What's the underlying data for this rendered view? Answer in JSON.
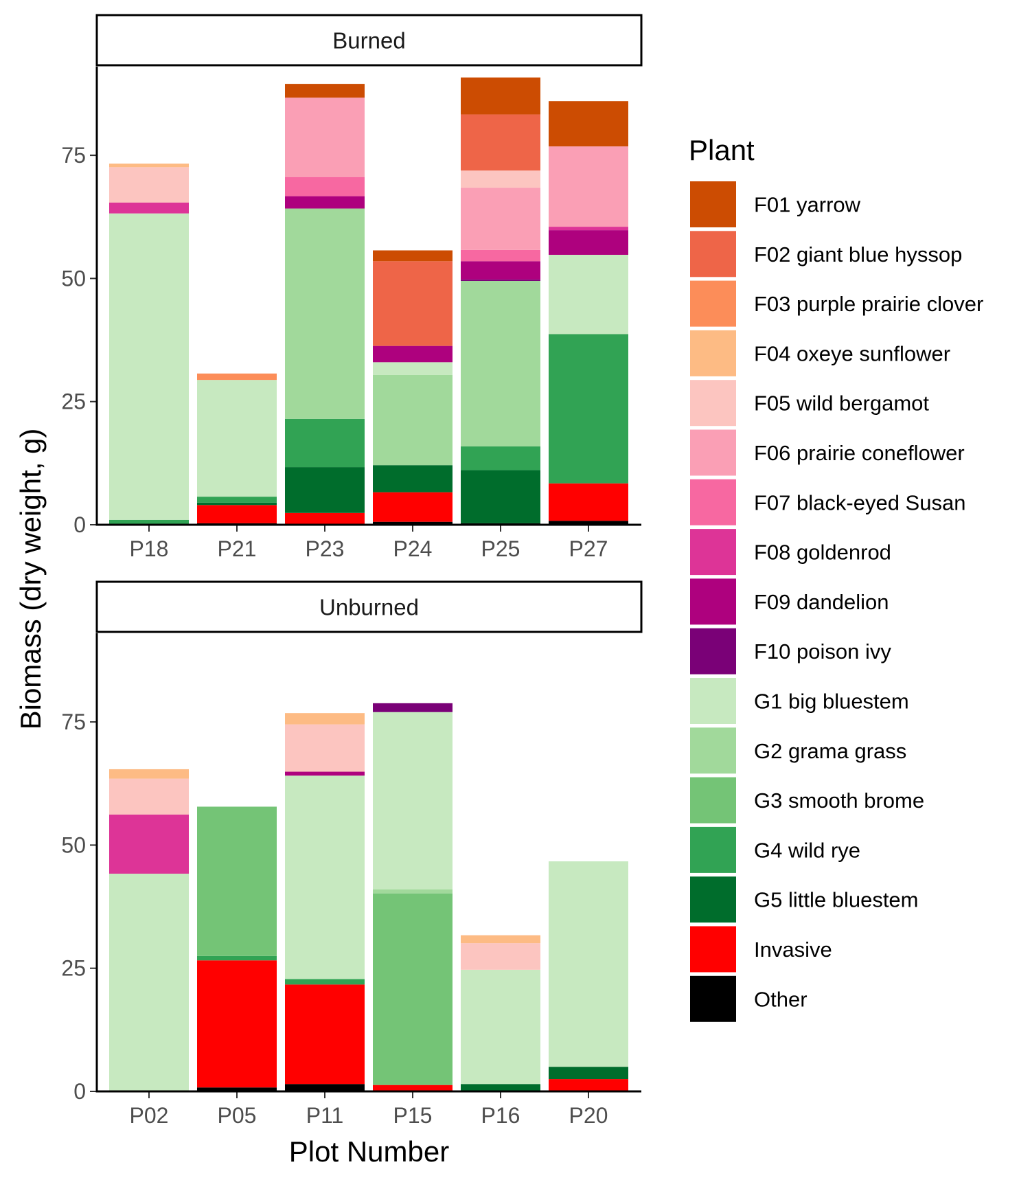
{
  "chart_data": {
    "type": "bar",
    "stacked": true,
    "xlabel": "Plot Number",
    "ylabel": "Biomass (dry weight, g)",
    "ylim": [
      0,
      93
    ],
    "yticks": [
      0,
      25,
      50,
      75
    ],
    "legend_title": "Plant",
    "legend_position": "right",
    "species": [
      {
        "name": "F01 yarrow",
        "color": "#cc4c02"
      },
      {
        "name": "F02 giant blue hyssop",
        "color": "#ee6548"
      },
      {
        "name": "F03 purple prairie clover",
        "color": "#fc8d59"
      },
      {
        "name": "F04 oxeye sunflower",
        "color": "#fdbb84"
      },
      {
        "name": "F05 wild bergamot",
        "color": "#fcc5c0"
      },
      {
        "name": "F06 prairie coneflower",
        "color": "#fa9fb5"
      },
      {
        "name": "F07 black-eyed Susan",
        "color": "#f768a1"
      },
      {
        "name": "F08 goldenrod",
        "color": "#dd3497"
      },
      {
        "name": "F09 dandelion",
        "color": "#ae017e"
      },
      {
        "name": "F10 poison ivy",
        "color": "#7a0177"
      },
      {
        "name": "G1 big bluestem",
        "color": "#c7e9c0"
      },
      {
        "name": "G2 grama grass",
        "color": "#a1d99b"
      },
      {
        "name": "G3 smooth brome",
        "color": "#74c476"
      },
      {
        "name": "G4 wild rye",
        "color": "#31a354"
      },
      {
        "name": "G5 little bluestem",
        "color": "#006d2c"
      },
      {
        "name": "Invasive",
        "color": "#ff0000"
      },
      {
        "name": "Other",
        "color": "#000000"
      }
    ],
    "panels": [
      {
        "title": "Burned",
        "categories": [
          "P18",
          "P21",
          "P23",
          "P24",
          "P25",
          "P27"
        ],
        "stacks": [
          {
            "G4 wild rye": 1.0,
            "G1 big bluestem": 62.2,
            "F08 goldenrod": 2.2,
            "F05 wild bergamot": 7.2,
            "F04 oxeye sunflower": 0.7
          },
          {
            "Other": 0.3,
            "Invasive": 3.7,
            "G5 little bluestem": 0.5,
            "G4 wild rye": 1.2,
            "G1 big bluestem": 23.7,
            "F03 purple prairie clover": 1.3
          },
          {
            "Invasive": 2.4,
            "G5 little bluestem": 9.3,
            "G4 wild rye": 9.8,
            "G2 grama grass": 42.7,
            "F09 dandelion": 2.5,
            "F07 black-eyed Susan": 3.9,
            "F06 prairie coneflower": 16.1,
            "F01 yarrow": 2.8
          },
          {
            "Other": 0.6,
            "Invasive": 6.0,
            "G5 little bluestem": 5.5,
            "G2 grama grass": 18.3,
            "G1 big bluestem": 2.6,
            "F09 dandelion": 3.3,
            "F02 giant blue hyssop": 17.2,
            "F01 yarrow": 2.2
          },
          {
            "Other": 0.3,
            "G5 little bluestem": 10.8,
            "G4 wild rye": 4.8,
            "G2 grama grass": 33.6,
            "F10 poison ivy": 0.3,
            "F09 dandelion": 3.7,
            "F07 black-eyed Susan": 2.3,
            "F06 prairie coneflower": 12.6,
            "F05 wild bergamot": 3.5,
            "F02 giant blue hyssop": 11.4,
            "F01 yarrow": 7.5
          },
          {
            "Other": 0.8,
            "Invasive": 7.6,
            "G4 wild rye": 30.3,
            "G1 big bluestem": 16.1,
            "F09 dandelion": 5.0,
            "F08 goldenrod": 0.7,
            "F06 prairie coneflower": 16.3,
            "F01 yarrow": 9.2
          }
        ]
      },
      {
        "title": "Unburned",
        "categories": [
          "P02",
          "P05",
          "P11",
          "P15",
          "P16",
          "P20"
        ],
        "stacks": [
          {
            "Other": 0.2,
            "G1 big bluestem": 44.0,
            "F08 goldenrod": 12.0,
            "F05 wild bergamot": 7.3,
            "F04 oxeye sunflower": 1.9
          },
          {
            "Other": 0.8,
            "Invasive": 25.8,
            "G4 wild rye": 0.9,
            "G3 smooth brome": 30.3
          },
          {
            "Other": 1.5,
            "Invasive": 20.2,
            "G4 wild rye": 1.1,
            "G1 big bluestem": 41.3,
            "F09 dandelion": 0.8,
            "F05 wild bergamot": 9.6,
            "F04 oxeye sunflower": 2.3
          },
          {
            "Invasive": 1.3,
            "G3 smooth brome": 38.9,
            "G2 grama grass": 0.8,
            "G1 big bluestem": 36.0,
            "F10 poison ivy": 1.8
          },
          {
            "G5 little bluestem": 1.5,
            "G1 big bluestem": 23.2,
            "F05 wild bergamot": 5.4,
            "F04 oxeye sunflower": 1.6
          },
          {
            "Invasive": 2.5,
            "G5 little bluestem": 2.5,
            "G1 big bluestem": 41.7
          }
        ]
      }
    ]
  }
}
